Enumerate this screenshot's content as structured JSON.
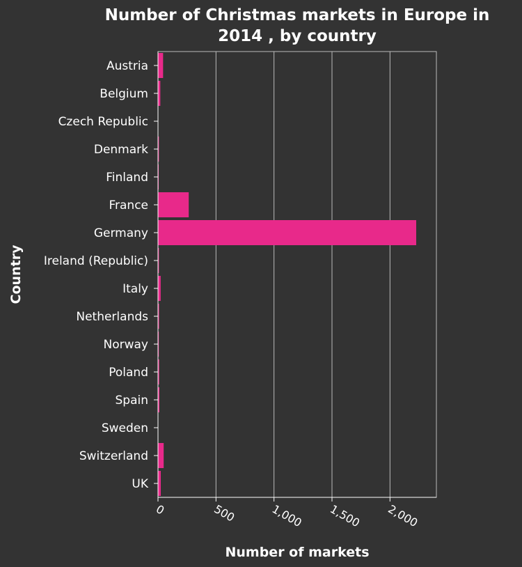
{
  "chart_data": {
    "type": "bar",
    "orientation": "horizontal",
    "title_lines": [
      "Number of Christmas markets in Europe in",
      "2014 , by country"
    ],
    "xlabel": "Number of markets",
    "ylabel": "Country",
    "categories": [
      "Austria",
      "Belgium",
      "Czech Republic",
      "Denmark",
      "Finland",
      "France",
      "Germany",
      "Ireland (Republic)",
      "Italy",
      "Netherlands",
      "Norway",
      "Poland",
      "Spain",
      "Sweden",
      "Switzerland",
      "UK"
    ],
    "values": [
      44,
      20,
      3,
      8,
      6,
      265,
      2226,
      8,
      23,
      9,
      7,
      10,
      12,
      2,
      49,
      24
    ],
    "xlim": [
      0,
      2400
    ],
    "xticks": [
      0,
      500,
      1000,
      1500,
      2000
    ],
    "xtick_labels": [
      "0",
      "500",
      "1,000",
      "1,500",
      "2,000"
    ],
    "grid": "vertical",
    "bar_color": "#e8298a",
    "background_color": "#333333",
    "grid_color": "#bbbbbb"
  }
}
